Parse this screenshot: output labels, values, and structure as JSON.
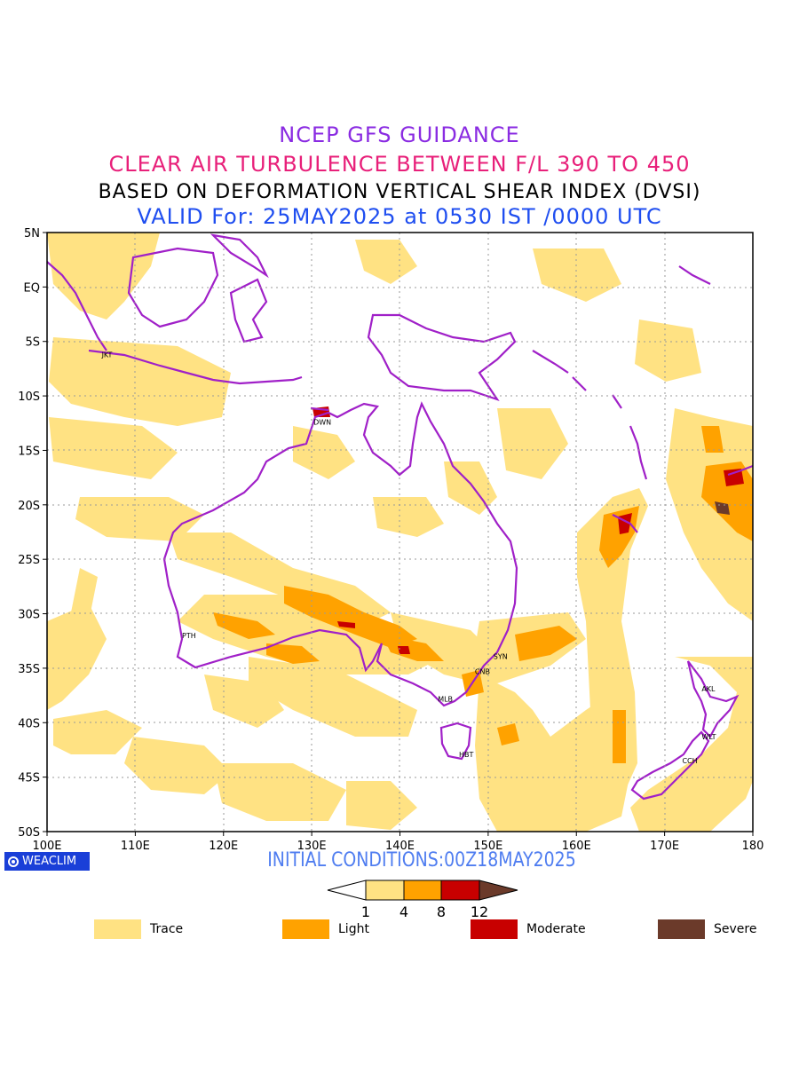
{
  "header": {
    "line1": "NCEP GFS GUIDANCE",
    "line2": "CLEAR AIR TURBULENCE BETWEEN F/L 390 TO 450",
    "line3": "BASED ON DEFORMATION VERTICAL SHEAR INDEX (DVSI)",
    "line4": "VALID For: 25MAY2025 at 0530 IST /0000 UTC",
    "colors": {
      "line1": "#8a2be2",
      "line2": "#e8207a",
      "line3": "#000000",
      "line4": "#1f4ef0"
    }
  },
  "map": {
    "lon_range": [
      100,
      180
    ],
    "lat_range": [
      -50,
      5
    ],
    "lon_ticks": [
      "100E",
      "110E",
      "120E",
      "130E",
      "140E",
      "150E",
      "160E",
      "170E",
      "180"
    ],
    "lat_ticks": [
      "5N",
      "EQ",
      "5S",
      "10S",
      "15S",
      "20S",
      "25S",
      "30S",
      "35S",
      "40S",
      "45S",
      "50S"
    ],
    "coastline_color": "#a020c8",
    "stations": [
      {
        "label": "JKT",
        "lon": 106.8,
        "lat": -6.2
      },
      {
        "label": "DWN",
        "lon": 130.8,
        "lat": -12.4
      },
      {
        "label": "PTH",
        "lon": 115.9,
        "lat": -32.0
      },
      {
        "label": "SYN",
        "lon": 151.2,
        "lat": -33.9
      },
      {
        "label": "CNB",
        "lon": 149.1,
        "lat": -35.3
      },
      {
        "label": "MLB",
        "lon": 144.9,
        "lat": -37.8
      },
      {
        "label": "HBT",
        "lon": 147.3,
        "lat": -42.9
      },
      {
        "label": "AKL",
        "lon": 174.8,
        "lat": -36.9
      },
      {
        "label": "WLT",
        "lon": 174.8,
        "lat": -41.3
      },
      {
        "label": "CCH",
        "lon": 172.6,
        "lat": -43.5
      }
    ]
  },
  "footer": {
    "logo": "WEACLIM",
    "initial_conditions": "INITIAL CONDITIONS:00Z18MAY2025"
  },
  "colorbar": {
    "levels": [
      "1",
      "4",
      "8",
      "12"
    ],
    "colors": [
      "#ffffff",
      "#ffe283",
      "#ffa200",
      "#c80000",
      "#6b3a2a"
    ]
  },
  "legend": [
    {
      "label": "Trace",
      "color": "#ffe283"
    },
    {
      "label": "Light",
      "color": "#ffa200"
    },
    {
      "label": "Moderate",
      "color": "#c80000"
    },
    {
      "label": "Severe",
      "color": "#6b3a2a"
    }
  ]
}
